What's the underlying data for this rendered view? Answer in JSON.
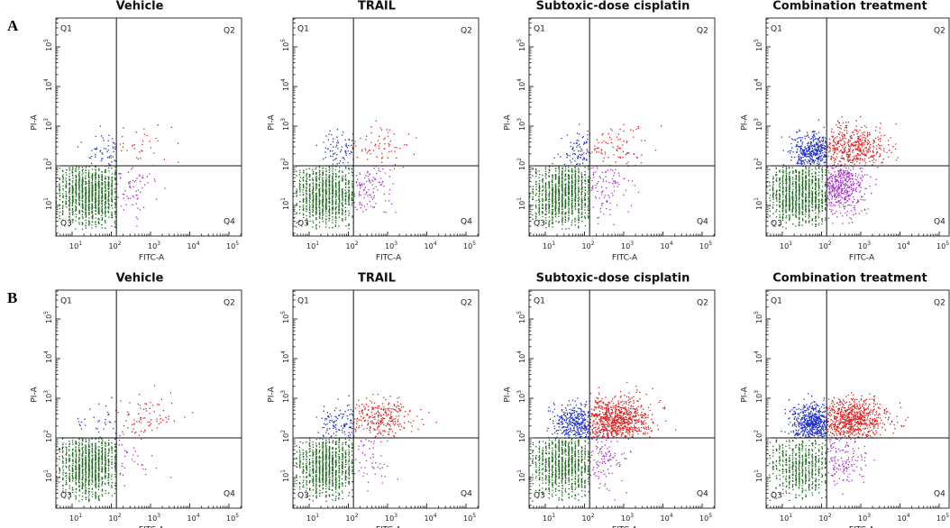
{
  "figure": {
    "axis": {
      "base": "10",
      "exponents": [
        "1",
        "2",
        "3",
        "4",
        "5"
      ]
    },
    "quadrants": [
      "Q1",
      "Q2",
      "Q3",
      "Q4"
    ],
    "rows": [
      {
        "label": "A",
        "panels": [
          {
            "title": "Vehicle",
            "x_label": "FITC-A",
            "y_label": "PI-A"
          },
          {
            "title": "TRAIL",
            "x_label": "FITC-A",
            "y_label": "PI-A"
          },
          {
            "title": "Subtoxic-dose cisplatin",
            "x_label": "FITC-A",
            "y_label": "PI-A"
          },
          {
            "title": "Combination treatment",
            "x_label": "FITC-A",
            "y_label": "PI-A"
          }
        ]
      },
      {
        "label": "B",
        "panels": [
          {
            "title": "Vehicle",
            "x_label": "FITC-A",
            "y_label": "PI-A"
          },
          {
            "title": "TRAIL",
            "x_label": "FITC-A",
            "y_label": "PI-A"
          },
          {
            "title": "Subtoxic-dose cisplatin",
            "x_label": "FITC-A",
            "y_label": "PI-A"
          },
          {
            "title": "Combination treatment",
            "x_label": "FITC-A",
            "y_label": "PI-A"
          }
        ]
      }
    ]
  }
}
